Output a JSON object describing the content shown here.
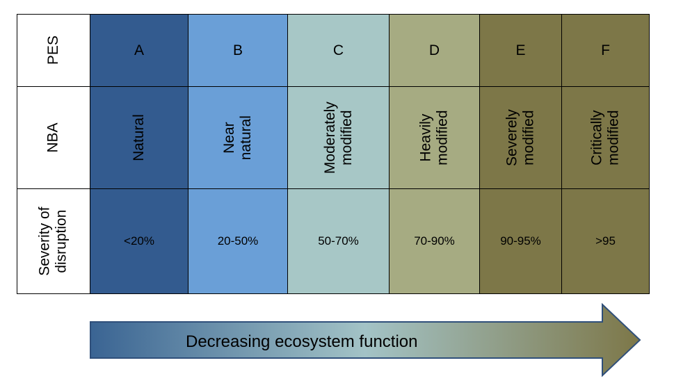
{
  "rows": {
    "pes_label": "PES",
    "nba_label": "NBA",
    "severity_label_1": "Severity of",
    "severity_label_2": "disruption"
  },
  "categories": [
    {
      "grade": "A",
      "nba_line1": "Natural",
      "nba_line2": "",
      "severity": "<20%",
      "color": "#335b8f"
    },
    {
      "grade": "B",
      "nba_line1": "Near",
      "nba_line2": "natural",
      "severity": "20-50%",
      "color": "#6a9fd7"
    },
    {
      "grade": "C",
      "nba_line1": "Moderately",
      "nba_line2": "modified",
      "severity": "50-70%",
      "color": "#a7c7c6"
    },
    {
      "grade": "D",
      "nba_line1": "Heavily",
      "nba_line2": "modified",
      "severity": "70-90%",
      "color": "#a6ab82"
    },
    {
      "grade": "E",
      "nba_line1": "Severely",
      "nba_line2": "modified",
      "severity": "90-95%",
      "color": "#7d7748"
    },
    {
      "grade": "F",
      "nba_line1": "Critically",
      "nba_line2": "modified",
      "severity": ">95",
      "color": "#7d7748"
    }
  ],
  "arrow": {
    "label": "Decreasing ecosystem function",
    "start_color": "#3a6493",
    "mid_color": "#a3c3c6",
    "end_color": "#7d7748"
  }
}
